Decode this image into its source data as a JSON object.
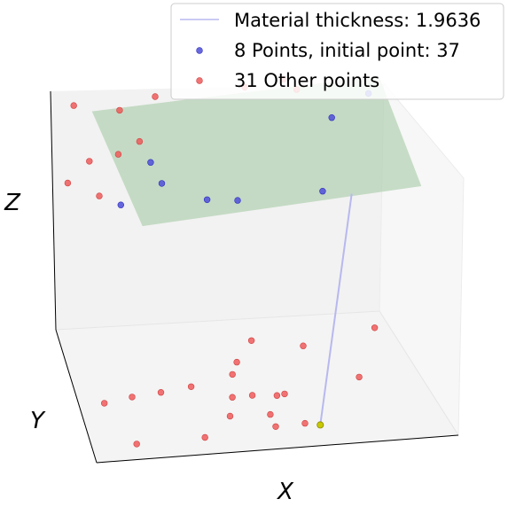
{
  "chart_data": {
    "type": "scatter",
    "projection": "3d",
    "title": "",
    "xlabel": "X",
    "ylabel": "Y",
    "zlabel": "Z",
    "grid": false,
    "legend": {
      "placement": "top-right",
      "entries": [
        {
          "label": "Material thickness: 1.9636",
          "kind": "line",
          "color": "#b8b8f0"
        },
        {
          "label": "8 Points, initial point: 37",
          "kind": "marker",
          "color": "#3f3fe6"
        },
        {
          "label": "31 Other points",
          "kind": "marker",
          "color": "#f05050"
        }
      ]
    },
    "colors": {
      "points_selected": "#4d4dd8",
      "points_other": "#ef5b5b",
      "plane": "#a8cba8",
      "thickness_line": "#b8b8f0",
      "projection_point": "#c8c800"
    },
    "series": [
      {
        "name": "8 Points, initial point: 37",
        "points": [
          [
            0.87,
            0.93,
            0.93
          ],
          [
            0.76,
            0.86,
            0.88
          ],
          [
            0.27,
            0.7,
            0.75
          ],
          [
            0.25,
            0.79,
            0.79
          ],
          [
            0.16,
            0.74,
            0.65
          ],
          [
            0.47,
            0.62,
            0.7
          ],
          [
            0.7,
            0.57,
            0.74
          ],
          [
            0.39,
            0.66,
            0.69
          ]
        ]
      },
      {
        "name": "31 Other points",
        "points": [
          [
            0.06,
            0.97,
            0.95
          ],
          [
            0.18,
            0.91,
            0.95
          ],
          [
            0.28,
            0.92,
            0.99
          ],
          [
            0.53,
            0.94,
            0.99
          ],
          [
            0.64,
            0.96,
            1.0
          ],
          [
            0.67,
            0.91,
            0.98
          ],
          [
            0.23,
            0.88,
            0.83
          ],
          [
            0.16,
            0.78,
            0.84
          ],
          [
            0.08,
            0.78,
            0.82
          ],
          [
            0.02,
            0.79,
            0.73
          ],
          [
            0.1,
            0.73,
            0.7
          ],
          [
            0.49,
            0.53,
            0.16
          ],
          [
            0.62,
            0.41,
            0.19
          ],
          [
            0.44,
            0.45,
            0.12
          ],
          [
            0.83,
            0.52,
            0.18
          ],
          [
            0.76,
            0.29,
            0.11
          ],
          [
            0.05,
            0.24,
            0.11
          ],
          [
            0.13,
            0.27,
            0.11
          ],
          [
            0.21,
            0.27,
            0.12
          ],
          [
            0.3,
            0.33,
            0.1
          ],
          [
            0.42,
            0.38,
            0.11
          ],
          [
            0.46,
            0.25,
            0.09
          ],
          [
            0.53,
            0.27,
            0.07
          ],
          [
            0.39,
            0.18,
            0.05
          ],
          [
            0.5,
            0.17,
            0.05
          ],
          [
            0.51,
            0.13,
            0.02
          ],
          [
            0.12,
            0.08,
            0.02
          ],
          [
            0.31,
            0.09,
            0.02
          ],
          [
            0.59,
            0.12,
            0.03
          ],
          [
            0.55,
            0.26,
            0.08
          ],
          [
            0.41,
            0.3,
            0.06
          ]
        ]
      }
    ],
    "plane_corners": [
      [
        0.11,
        0.97,
        0.92
      ],
      [
        0.9,
        0.93,
        1.0
      ],
      [
        0.98,
        0.64,
        0.69
      ],
      [
        0.21,
        0.66,
        0.6
      ]
    ],
    "thickness_segment": {
      "from": [
        0.78,
        0.57,
        0.72
      ],
      "to": [
        0.63,
        0.1,
        0.03
      ]
    }
  }
}
